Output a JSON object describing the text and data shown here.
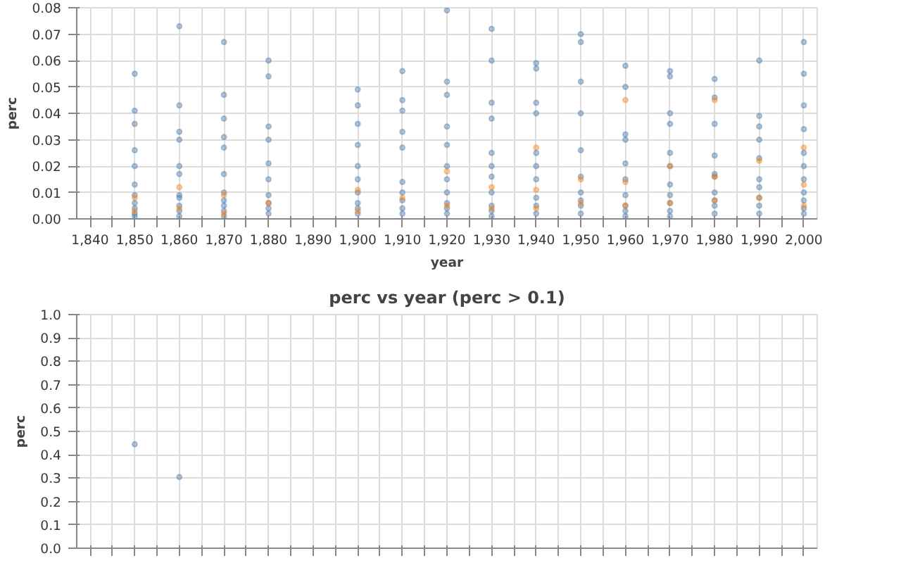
{
  "chart_data": [
    {
      "type": "scatter",
      "xlabel": "year",
      "ylabel": "perc",
      "xlim": [
        1837,
        2003
      ],
      "ylim": [
        0,
        0.08
      ],
      "xticks": [
        {
          "value": 1840,
          "label": "1,840"
        },
        {
          "value": 1845,
          "label": null
        },
        {
          "value": 1850,
          "label": "1,850"
        },
        {
          "value": 1855,
          "label": null
        },
        {
          "value": 1860,
          "label": "1,860"
        },
        {
          "value": 1865,
          "label": null
        },
        {
          "value": 1870,
          "label": "1,870"
        },
        {
          "value": 1875,
          "label": null
        },
        {
          "value": 1880,
          "label": "1,880"
        },
        {
          "value": 1885,
          "label": null
        },
        {
          "value": 1890,
          "label": "1,890"
        },
        {
          "value": 1895,
          "label": null
        },
        {
          "value": 1900,
          "label": "1,900"
        },
        {
          "value": 1905,
          "label": null
        },
        {
          "value": 1910,
          "label": "1,910"
        },
        {
          "value": 1915,
          "label": null
        },
        {
          "value": 1920,
          "label": "1,920"
        },
        {
          "value": 1925,
          "label": null
        },
        {
          "value": 1930,
          "label": "1,930"
        },
        {
          "value": 1935,
          "label": null
        },
        {
          "value": 1940,
          "label": "1,940"
        },
        {
          "value": 1945,
          "label": null
        },
        {
          "value": 1950,
          "label": "1,950"
        },
        {
          "value": 1955,
          "label": null
        },
        {
          "value": 1960,
          "label": "1,960"
        },
        {
          "value": 1965,
          "label": null
        },
        {
          "value": 1970,
          "label": "1,970"
        },
        {
          "value": 1975,
          "label": null
        },
        {
          "value": 1980,
          "label": "1,980"
        },
        {
          "value": 1985,
          "label": null
        },
        {
          "value": 1990,
          "label": "1,990"
        },
        {
          "value": 1995,
          "label": null
        },
        {
          "value": 2000,
          "label": "2,000"
        }
      ],
      "yticks": [
        {
          "value": 0,
          "label": "0.00"
        },
        {
          "value": 0.01,
          "label": "0.01"
        },
        {
          "value": 0.02,
          "label": "0.02"
        },
        {
          "value": 0.03,
          "label": "0.03"
        },
        {
          "value": 0.04,
          "label": "0.04"
        },
        {
          "value": 0.05,
          "label": "0.05"
        },
        {
          "value": 0.06,
          "label": "0.06"
        },
        {
          "value": 0.07,
          "label": "0.07"
        },
        {
          "value": 0.08,
          "label": "0.08"
        }
      ],
      "grid": true,
      "marker": "circle",
      "series": [
        {
          "color": "#4c78a8",
          "x": [
            1850,
            1850,
            1850,
            1850,
            1850,
            1850,
            1850,
            1850,
            1850,
            1850,
            1850,
            1860,
            1860,
            1860,
            1860,
            1860,
            1860,
            1860,
            1860,
            1860,
            1860,
            1860,
            1870,
            1870,
            1870,
            1870,
            1870,
            1870,
            1870,
            1870,
            1870,
            1870,
            1870,
            1880,
            1880,
            1880,
            1880,
            1880,
            1880,
            1880,
            1880,
            1880,
            1880,
            1900,
            1900,
            1900,
            1900,
            1900,
            1900,
            1900,
            1900,
            1900,
            1900,
            1910,
            1910,
            1910,
            1910,
            1910,
            1910,
            1910,
            1910,
            1910,
            1910,
            1920,
            1920,
            1920,
            1920,
            1920,
            1920,
            1920,
            1920,
            1920,
            1920,
            1920,
            1930,
            1930,
            1930,
            1930,
            1930,
            1930,
            1930,
            1930,
            1930,
            1930,
            1930,
            1940,
            1940,
            1940,
            1940,
            1940,
            1940,
            1940,
            1940,
            1940,
            1940,
            1950,
            1950,
            1950,
            1950,
            1950,
            1950,
            1950,
            1950,
            1950,
            1950,
            1960,
            1960,
            1960,
            1960,
            1960,
            1960,
            1960,
            1960,
            1960,
            1960,
            1970,
            1970,
            1970,
            1970,
            1970,
            1970,
            1970,
            1970,
            1970,
            1970,
            1970,
            1980,
            1980,
            1980,
            1980,
            1980,
            1980,
            1980,
            1980,
            1980,
            1980,
            1990,
            1990,
            1990,
            1990,
            1990,
            1990,
            1990,
            1990,
            1990,
            1990,
            2000,
            2000,
            2000,
            2000,
            2000,
            2000,
            2000,
            2000,
            2000,
            2000,
            2000
          ],
          "values": [
            0.055,
            0.041,
            0.036,
            0.026,
            0.02,
            0.013,
            0.009,
            0.006,
            0.004,
            0.002,
            0.001,
            0.073,
            0.043,
            0.033,
            0.03,
            0.02,
            0.017,
            0.009,
            0.008,
            0.005,
            0.003,
            0.001,
            0.067,
            0.047,
            0.038,
            0.031,
            0.027,
            0.017,
            0.01,
            0.007,
            0.005,
            0.003,
            0.001,
            0.06,
            0.054,
            0.035,
            0.03,
            0.021,
            0.015,
            0.009,
            0.006,
            0.004,
            0.002,
            0.049,
            0.043,
            0.036,
            0.028,
            0.02,
            0.015,
            0.01,
            0.006,
            0.004,
            0.002,
            0.056,
            0.045,
            0.041,
            0.033,
            0.027,
            0.014,
            0.01,
            0.007,
            0.004,
            0.002,
            0.079,
            0.052,
            0.047,
            0.035,
            0.028,
            0.02,
            0.015,
            0.01,
            0.006,
            0.004,
            0.002,
            0.072,
            0.06,
            0.044,
            0.038,
            0.025,
            0.02,
            0.016,
            0.01,
            0.005,
            0.003,
            0.001,
            0.059,
            0.057,
            0.044,
            0.04,
            0.025,
            0.02,
            0.015,
            0.008,
            0.005,
            0.002,
            0.07,
            0.067,
            0.052,
            0.04,
            0.026,
            0.016,
            0.01,
            0.007,
            0.005,
            0.002,
            0.058,
            0.05,
            0.032,
            0.03,
            0.021,
            0.015,
            0.009,
            0.005,
            0.003,
            0.001,
            0.056,
            0.054,
            0.04,
            0.036,
            0.025,
            0.02,
            0.013,
            0.009,
            0.006,
            0.003,
            0.001,
            0.053,
            0.046,
            0.036,
            0.024,
            0.017,
            0.016,
            0.01,
            0.007,
            0.005,
            0.002,
            0.06,
            0.039,
            0.035,
            0.03,
            0.023,
            0.015,
            0.012,
            0.008,
            0.005,
            0.002,
            0.067,
            0.055,
            0.043,
            0.034,
            0.025,
            0.02,
            0.015,
            0.01,
            0.007,
            0.004,
            0.002
          ]
        },
        {
          "color": "#f58518",
          "x": [
            1850,
            1850,
            1860,
            1860,
            1870,
            1870,
            1880,
            1900,
            1900,
            1910,
            1920,
            1920,
            1930,
            1930,
            1940,
            1940,
            1940,
            1950,
            1950,
            1960,
            1960,
            1960,
            1970,
            1970,
            1980,
            1980,
            1980,
            1990,
            1990,
            2000,
            2000,
            2000
          ],
          "values": [
            0.008,
            0.003,
            0.012,
            0.004,
            0.009,
            0.002,
            0.006,
            0.011,
            0.003,
            0.008,
            0.018,
            0.005,
            0.012,
            0.004,
            0.027,
            0.011,
            0.004,
            0.015,
            0.006,
            0.045,
            0.014,
            0.005,
            0.02,
            0.006,
            0.045,
            0.016,
            0.007,
            0.022,
            0.008,
            0.027,
            0.013,
            0.005
          ]
        }
      ]
    },
    {
      "type": "scatter",
      "title": "perc vs year (perc > 0.1)",
      "ylabel": "perc",
      "xlim": [
        1837,
        2003
      ],
      "ylim": [
        0,
        1
      ],
      "xticks": [
        1840,
        1845,
        1850,
        1855,
        1860,
        1865,
        1870,
        1875,
        1880,
        1885,
        1890,
        1895,
        1900,
        1905,
        1910,
        1915,
        1920,
        1925,
        1930,
        1935,
        1940,
        1945,
        1950,
        1955,
        1960,
        1965,
        1970,
        1975,
        1980,
        1985,
        1990,
        1995,
        2000
      ],
      "yticks": [
        {
          "value": 0,
          "label": "0.0"
        },
        0.1,
        0.2,
        0.3,
        0.4,
        0.5,
        0.6,
        0.7,
        0.8,
        0.9,
        {
          "value": 1,
          "label": "1.0"
        }
      ],
      "grid": true,
      "marker": "circle",
      "tick_labels": "y",
      "series": [
        {
          "color": "#4c78a8",
          "x": [
            1850,
            1860
          ],
          "values": [
            0.445,
            0.305
          ]
        }
      ]
    }
  ]
}
